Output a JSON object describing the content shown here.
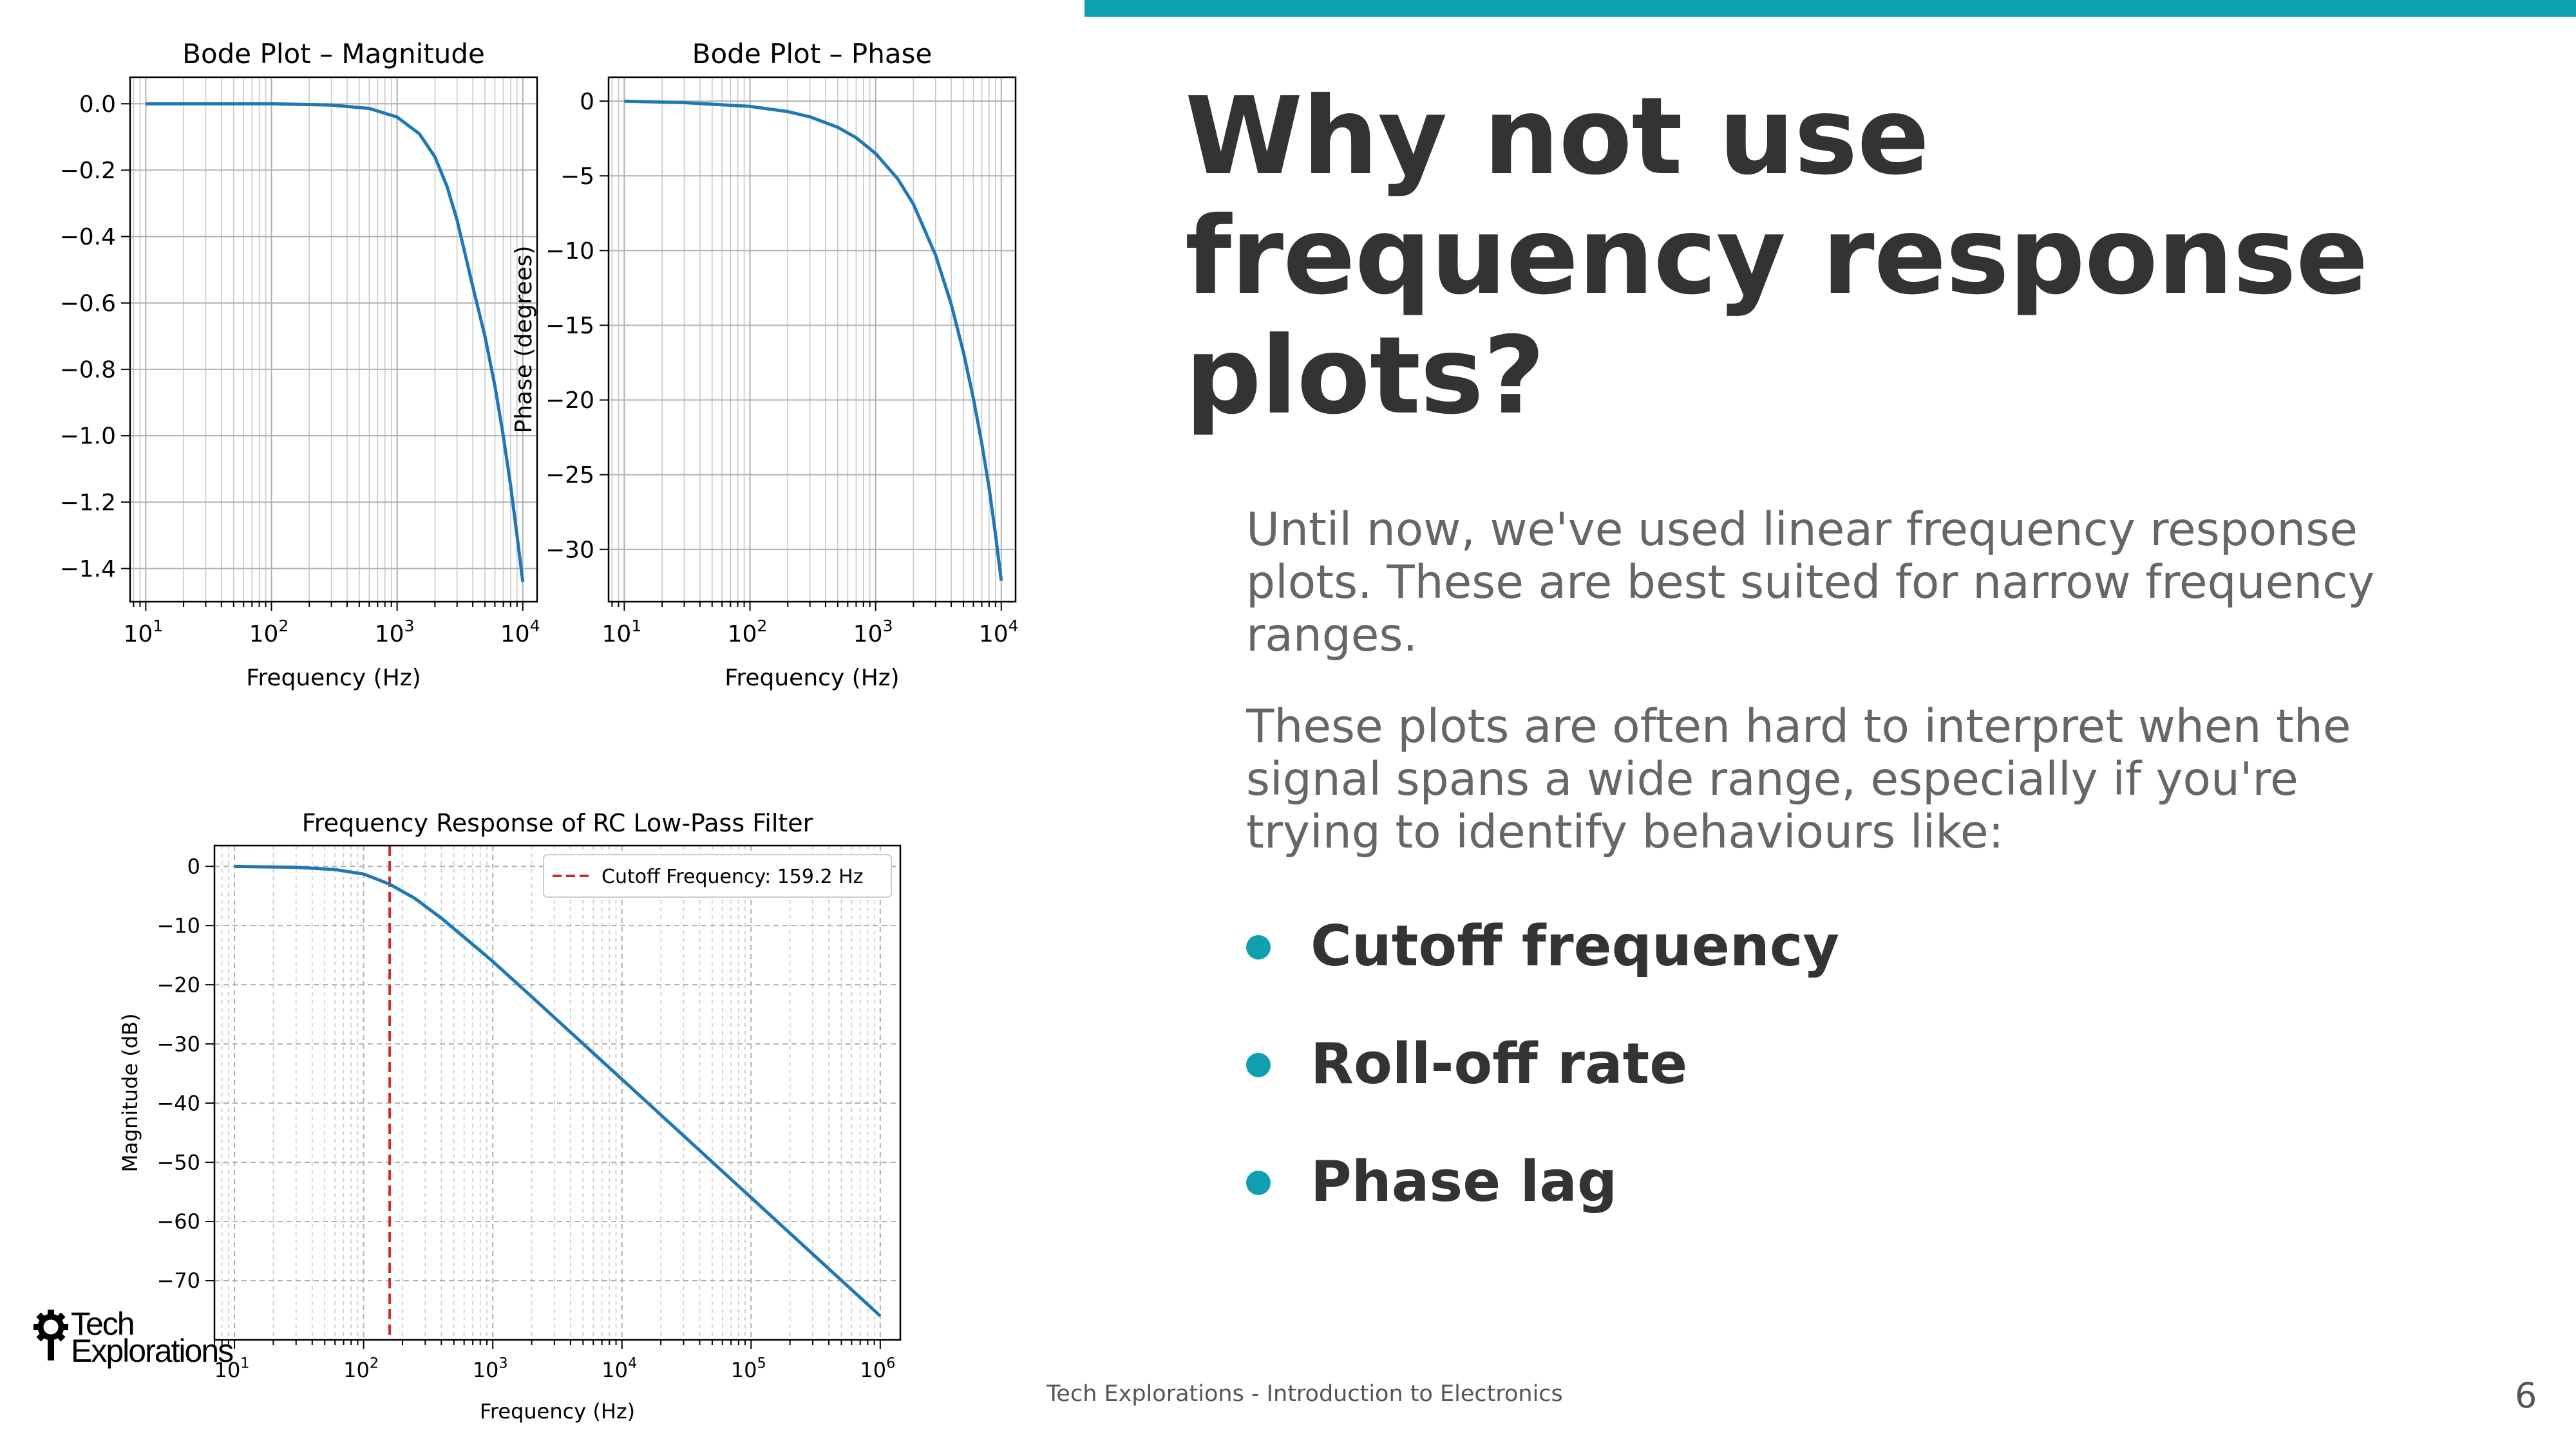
{
  "slide": {
    "title": "Why not use frequency response plots?",
    "paragraph_1": "Until now, we've used linear frequency response plots. These are best suited for narrow frequency ranges.",
    "paragraph_2": "These plots are often hard to interpret when the signal spans a wide range, especially if you're trying to identify behaviours like:",
    "bullets": [
      "Cutoff frequency",
      "Roll-off rate",
      "Phase lag"
    ],
    "footer": "Tech Explorations - Introduction to Electronics",
    "page_number": "6",
    "logo": {
      "line1": "Tech",
      "line2": "Explorations"
    },
    "colors": {
      "accent": "#0fa0b0",
      "title": "#333333",
      "body": "#666666",
      "line": "#1f77b4",
      "cutoff": "#d62728"
    }
  },
  "chart_data": [
    {
      "id": "bode-magnitude",
      "type": "line",
      "title": "Bode Plot – Magnitude",
      "xlabel": "Frequency (Hz)",
      "ylabel": "",
      "xscale": "log",
      "xlim": [
        7.5,
        13000
      ],
      "ylim": [
        -1.5,
        0.08
      ],
      "yticks": [
        0.0,
        -0.2,
        -0.4,
        -0.6,
        -0.8,
        -1.0,
        -1.2,
        -1.4
      ],
      "ytick_labels": [
        "0.0",
        "−0.2",
        "−0.4",
        "−0.6",
        "−0.8",
        "−1.0",
        "−1.2",
        "−1.4"
      ],
      "xticks": [
        10,
        100,
        1000,
        10000
      ],
      "xtick_labels": [
        [
          "10",
          "1"
        ],
        [
          "10",
          "2"
        ],
        [
          "10",
          "3"
        ],
        [
          "10",
          "4"
        ]
      ],
      "grid": "both",
      "series": [
        {
          "x": [
            10,
            100,
            300,
            600,
            1000,
            1500,
            2000,
            2500,
            3000,
            4000,
            5000,
            6000,
            7000,
            8000,
            9000,
            10000
          ],
          "y": [
            0.0,
            0.0,
            -0.004,
            -0.014,
            -0.04,
            -0.09,
            -0.16,
            -0.25,
            -0.35,
            -0.55,
            -0.7,
            -0.85,
            -1.0,
            -1.15,
            -1.3,
            -1.44
          ]
        }
      ]
    },
    {
      "id": "bode-phase",
      "type": "line",
      "title": "Bode Plot – Phase",
      "xlabel": "Frequency (Hz)",
      "ylabel": "Phase (degrees)",
      "xscale": "log",
      "xlim": [
        7.5,
        13000
      ],
      "ylim": [
        -33.5,
        1.6
      ],
      "yticks": [
        0,
        -5,
        -10,
        -15,
        -20,
        -25,
        -30
      ],
      "ytick_labels": [
        "0",
        "−5",
        "−10",
        "−15",
        "−20",
        "−25",
        "−30"
      ],
      "xticks": [
        10,
        100,
        1000,
        10000
      ],
      "xtick_labels": [
        [
          "10",
          "1"
        ],
        [
          "10",
          "2"
        ],
        [
          "10",
          "3"
        ],
        [
          "10",
          "4"
        ]
      ],
      "grid": "both",
      "series": [
        {
          "x": [
            10,
            30,
            100,
            200,
            300,
            500,
            700,
            1000,
            1500,
            2000,
            3000,
            4000,
            5000,
            6000,
            7000,
            8000,
            9000,
            10000
          ],
          "y": [
            0.0,
            -0.1,
            -0.35,
            -0.7,
            -1.05,
            -1.75,
            -2.45,
            -3.5,
            -5.2,
            -6.9,
            -10.3,
            -13.6,
            -16.8,
            -19.9,
            -22.9,
            -25.9,
            -29.0,
            -32.1
          ]
        }
      ]
    },
    {
      "id": "rc-lowpass",
      "type": "line",
      "title": "Frequency Response of RC Low-Pass Filter",
      "xlabel": "Frequency (Hz)",
      "ylabel": "Magnitude (dB)",
      "xscale": "log",
      "xlim": [
        7,
        1430000
      ],
      "ylim": [
        -80,
        3.5
      ],
      "yticks": [
        0,
        -10,
        -20,
        -30,
        -40,
        -50,
        -60,
        -70
      ],
      "ytick_labels": [
        "0",
        "−10",
        "−20",
        "−30",
        "−40",
        "−50",
        "−60",
        "−70"
      ],
      "xticks": [
        10,
        100,
        1000,
        10000,
        100000,
        1000000
      ],
      "xtick_labels": [
        [
          "10",
          "1"
        ],
        [
          "10",
          "2"
        ],
        [
          "10",
          "3"
        ],
        [
          "10",
          "4"
        ],
        [
          "10",
          "5"
        ],
        [
          "10",
          "6"
        ]
      ],
      "grid": "both-dashed",
      "legend": "upper right",
      "cutoff": {
        "x": 159.2,
        "label": "Cutoff Frequency: 159.2 Hz"
      },
      "series": [
        {
          "x": [
            10,
            30,
            60,
            100,
            159.2,
            250,
            400,
            700,
            1000,
            2000,
            5000,
            10000,
            100000,
            1000000
          ],
          "y": [
            -0.02,
            -0.15,
            -0.54,
            -1.3,
            -3.01,
            -5.43,
            -8.75,
            -13.2,
            -16.07,
            -22.03,
            -29.98,
            -35.97,
            -55.96,
            -75.96
          ]
        }
      ]
    }
  ]
}
